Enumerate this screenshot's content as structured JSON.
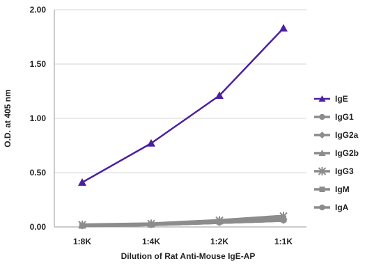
{
  "chart_data": {
    "type": "line",
    "title": "",
    "xlabel": "Dilution of Rat Anti-Mouse IgE-AP",
    "ylabel": "O.D. at 405 nm",
    "categories": [
      "1:8K",
      "1:4K",
      "1:2K",
      "1:1K"
    ],
    "ylim": [
      0,
      2.0
    ],
    "yticks": [
      "0.00",
      "0.50",
      "1.00",
      "1.50",
      "2.00"
    ],
    "grid": "horizontal",
    "legend_position": "right",
    "series": [
      {
        "name": "IgE",
        "values": [
          0.41,
          0.77,
          1.21,
          1.83
        ],
        "color": "#4b1fa0",
        "marker": "triangle"
      },
      {
        "name": "IgG1",
        "values": [
          0.01,
          0.02,
          0.04,
          0.06
        ],
        "color": "#8c8c8c",
        "marker": "circle"
      },
      {
        "name": "IgG2a",
        "values": [
          0.01,
          0.02,
          0.04,
          0.06
        ],
        "color": "#8c8c8c",
        "marker": "diamond"
      },
      {
        "name": "IgG2b",
        "values": [
          0.01,
          0.02,
          0.05,
          0.07
        ],
        "color": "#8c8c8c",
        "marker": "triangle"
      },
      {
        "name": "IgG3",
        "values": [
          0.02,
          0.03,
          0.06,
          0.1
        ],
        "color": "#8c8c8c",
        "marker": "star"
      },
      {
        "name": "IgM",
        "values": [
          0.01,
          0.02,
          0.05,
          0.08
        ],
        "color": "#8c8c8c",
        "marker": "square"
      },
      {
        "name": "IgA",
        "values": [
          0.01,
          0.02,
          0.04,
          0.06
        ],
        "color": "#8c8c8c",
        "marker": "circle"
      }
    ]
  }
}
